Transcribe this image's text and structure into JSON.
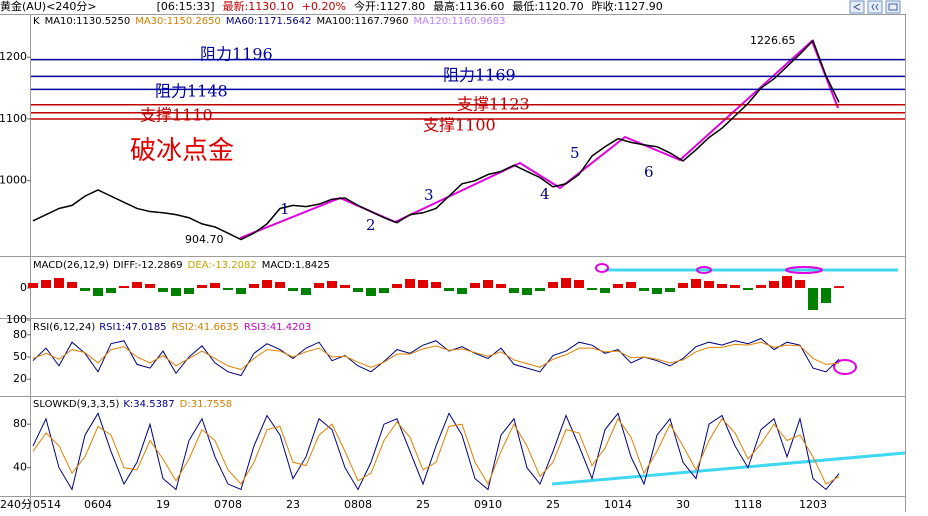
{
  "header": {
    "symbol": "黄金(AU)<240分>",
    "time": "[06:15:33]",
    "latest": "最新:1130.10",
    "change": "+0.20%",
    "open": "今开:1127.80",
    "high": "最高:1136.60",
    "low": "最低:1120.70",
    "prev_close": "昨收:1127.90"
  },
  "chart_data": [
    {
      "type": "line",
      "title": "破冰点金",
      "indicators": [
        {
          "text": "K",
          "color": "#000000"
        },
        {
          "text": "MA10:1130.5250",
          "color": "#000000"
        },
        {
          "text": "MA30:1150.2650",
          "color": "#d08000"
        },
        {
          "text": "MA60:1171.5642",
          "color": "#000080"
        },
        {
          "text": "MA100:1167.7960",
          "color": "#000000"
        },
        {
          "text": "MA120:1160.9683",
          "color": "#c080ff"
        }
      ],
      "categories": [
        "0514",
        null,
        null,
        null,
        null,
        "0604",
        null,
        null,
        null,
        null,
        "19",
        null,
        null,
        null,
        null,
        "0708",
        null,
        null,
        null,
        null,
        "23",
        null,
        null,
        null,
        null,
        "0808",
        null,
        null,
        null,
        null,
        "25",
        null,
        null,
        null,
        null,
        "0910",
        null,
        null,
        null,
        null,
        "25",
        null,
        null,
        null,
        null,
        "1014",
        null,
        null,
        null,
        null,
        "30",
        null,
        null,
        null,
        null,
        "1118",
        null,
        null,
        null,
        null,
        "1203",
        null,
        null
      ],
      "values": [
        935,
        945,
        955,
        960,
        975,
        985,
        975,
        965,
        955,
        950,
        948,
        945,
        940,
        930,
        925,
        915,
        904.7,
        915,
        930,
        955,
        960,
        958,
        962,
        970,
        972,
        960,
        950,
        940,
        932,
        945,
        948,
        955,
        975,
        995,
        1000,
        1010,
        1015,
        1025,
        1015,
        1005,
        990,
        995,
        1010,
        1040,
        1055,
        1068,
        1062,
        1058,
        1055,
        1045,
        1032,
        1050,
        1070,
        1085,
        1105,
        1125,
        1150,
        1165,
        1185,
        1205,
        1226.65,
        1170,
        1127
      ],
      "color": "#000000",
      "ylim": [
        878,
        1270
      ],
      "yticks": [
        1000,
        1100,
        1200
      ],
      "levels": [
        {
          "label": "阻力1196",
          "value": 1196,
          "color": "#0000a0"
        },
        {
          "label": "阻力1169",
          "value": 1169,
          "color": "#0000a0"
        },
        {
          "label": "阻力1148",
          "value": 1148,
          "color": "#0000a0"
        },
        {
          "label": "支撑1123",
          "value": 1123,
          "color": "#c00000"
        },
        {
          "label": "支撑1110",
          "value": 1110,
          "color": "#c00000"
        },
        {
          "label": "支撑1100",
          "value": 1100,
          "color": "#c00000"
        }
      ],
      "annotations": [
        "904.70",
        "1226.65"
      ],
      "waves": [
        "1",
        "2",
        "3",
        "4",
        "5",
        "6"
      ]
    },
    {
      "type": "bar",
      "title": "MACD(26,12,9)",
      "indicators": [
        {
          "text": "DIFF:-12.2869",
          "color": "#000000"
        },
        {
          "text": "DEA:-13.2082",
          "color": "#c8a000"
        },
        {
          "text": "MACD:1.8425",
          "color": "#000000"
        }
      ],
      "values": [
        5,
        8,
        10,
        6,
        -3,
        -8,
        -5,
        2,
        6,
        4,
        -4,
        -8,
        -6,
        3,
        5,
        -2,
        -6,
        4,
        8,
        6,
        -3,
        -7,
        5,
        7,
        3,
        -4,
        -8,
        -5,
        4,
        9,
        8,
        6,
        -3,
        -6,
        5,
        8,
        4,
        -5,
        -7,
        -3,
        6,
        10,
        8,
        -2,
        -5,
        4,
        6,
        -3,
        -6,
        -4,
        5,
        9,
        7,
        4,
        3,
        -2,
        3,
        7,
        12,
        8,
        -22,
        -15,
        1.8425
      ],
      "colors": {
        "up": "#e00000",
        "down": "#008000"
      },
      "ylim": [
        -30,
        30
      ],
      "yticks": [
        0
      ]
    },
    {
      "type": "line",
      "title": "RSI(6,12,24)",
      "indicators": [
        {
          "text": "RSI1:47.0185",
          "color": "#000080"
        },
        {
          "text": "RSI2:41.6635",
          "color": "#d08000"
        },
        {
          "text": "RSI3:41.4203",
          "color": "#c000c0"
        }
      ],
      "series": [
        {
          "color": "#000080",
          "values": [
            45,
            62,
            38,
            70,
            55,
            30,
            68,
            72,
            40,
            35,
            58,
            28,
            50,
            65,
            42,
            30,
            25,
            55,
            68,
            60,
            48,
            62,
            70,
            45,
            52,
            38,
            30,
            44,
            60,
            55,
            66,
            72,
            58,
            64,
            55,
            48,
            62,
            40,
            35,
            30,
            52,
            58,
            70,
            66,
            55,
            60,
            42,
            50,
            45,
            38,
            48,
            64,
            70,
            66,
            72,
            68,
            75,
            60,
            70,
            66,
            35,
            30,
            47.0185
          ]
        },
        {
          "color": "#e08000",
          "values": [
            48,
            55,
            47,
            60,
            56,
            42,
            60,
            64,
            50,
            42,
            52,
            38,
            48,
            58,
            48,
            38,
            33,
            48,
            60,
            58,
            50,
            57,
            62,
            50,
            51,
            43,
            36,
            43,
            54,
            54,
            61,
            65,
            59,
            61,
            56,
            51,
            57,
            46,
            41,
            36,
            47,
            53,
            62,
            62,
            57,
            58,
            49,
            50,
            47,
            42,
            46,
            57,
            63,
            63,
            67,
            66,
            70,
            63,
            66,
            65,
            48,
            40,
            41.6635
          ]
        }
      ],
      "ylim": [
        0,
        100
      ],
      "yticks": [
        20,
        50,
        80,
        100
      ]
    },
    {
      "type": "line",
      "title": "SLOWKD(9,3,3,5)",
      "indicators": [
        {
          "text": "K:34.5387",
          "color": "#000080"
        },
        {
          "text": "D:31.7558",
          "color": "#d08000"
        }
      ],
      "series": [
        {
          "color": "#000080",
          "values": [
            60,
            85,
            40,
            20,
            70,
            90,
            55,
            25,
            45,
            80,
            30,
            20,
            65,
            85,
            50,
            25,
            20,
            60,
            88,
            70,
            30,
            50,
            85,
            75,
            40,
            20,
            45,
            80,
            85,
            55,
            25,
            60,
            90,
            70,
            30,
            20,
            70,
            85,
            40,
            25,
            55,
            88,
            60,
            30,
            75,
            90,
            50,
            25,
            70,
            85,
            45,
            30,
            80,
            88,
            60,
            40,
            75,
            85,
            50,
            85,
            30,
            20,
            34.5387
          ]
        },
        {
          "color": "#e08000",
          "values": [
            55,
            72,
            60,
            35,
            50,
            78,
            70,
            40,
            38,
            65,
            48,
            28,
            48,
            75,
            65,
            38,
            25,
            45,
            75,
            78,
            45,
            42,
            70,
            80,
            55,
            28,
            35,
            65,
            82,
            68,
            38,
            45,
            78,
            80,
            45,
            25,
            55,
            80,
            60,
            32,
            45,
            75,
            72,
            42,
            58,
            85,
            68,
            35,
            55,
            80,
            60,
            38,
            65,
            85,
            72,
            48,
            62,
            80,
            65,
            70,
            50,
            25,
            31.7558
          ]
        }
      ],
      "ylim": [
        14,
        105
      ],
      "yticks": [
        40,
        80
      ],
      "period": "240分"
    }
  ]
}
